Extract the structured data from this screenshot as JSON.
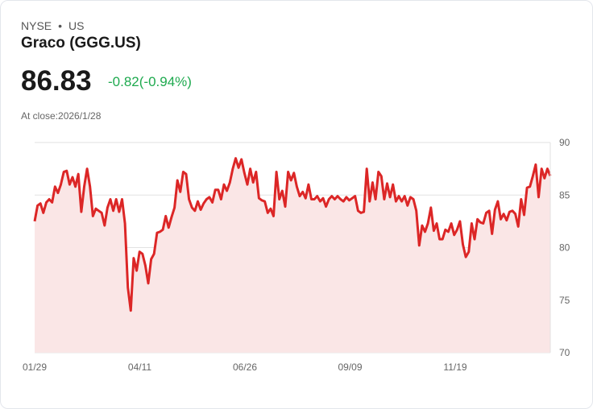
{
  "header": {
    "exchange": "NYSE",
    "separator": "•",
    "country": "US",
    "title": "Graco (GGG.US)",
    "price": "86.83",
    "change": "-0.82(-0.94%)",
    "close_label": "At close:2026/1/28"
  },
  "colors": {
    "line": "#dc2626",
    "fill": "#fae6e6",
    "change": "#1faa4f",
    "grid": "#e2e2e2"
  },
  "chart_data": {
    "type": "area",
    "title": "Graco (GGG.US)",
    "xlabel": "",
    "ylabel": "",
    "ylim": [
      70,
      90
    ],
    "yticks": [
      90,
      85,
      80,
      75,
      70
    ],
    "xticks": [
      "01/29",
      "04/11",
      "06/26",
      "09/09",
      "11/19"
    ],
    "grid": true,
    "y_axis_side": "right",
    "values": [
      82.5,
      84,
      84.2,
      83.3,
      84.3,
      84.6,
      84.3,
      85.8,
      85.2,
      86,
      87.2,
      87.3,
      86,
      86.7,
      85.8,
      87,
      83.4,
      85.8,
      87.5,
      85.8,
      83,
      83.7,
      83.5,
      83.3,
      82.1,
      83.8,
      84.6,
      83.5,
      84.6,
      83.4,
      84.6,
      82.3,
      76.2,
      74,
      79,
      77.8,
      79.6,
      79.4,
      78.3,
      76.6,
      78.9,
      79.4,
      81.4,
      81.5,
      81.7,
      83,
      81.9,
      82.9,
      83.8,
      86.4,
      85.3,
      87.2,
      87,
      84.6,
      83.8,
      83.5,
      84.4,
      83.6,
      84.2,
      84.6,
      84.8,
      84.3,
      85.5,
      85.5,
      84.6,
      86,
      85.4,
      86.2,
      87.5,
      88.5,
      87.6,
      88.4,
      87.1,
      86,
      87.5,
      86.2,
      87.2,
      84.7,
      84.5,
      84.4,
      83.3,
      83.7,
      83,
      87.2,
      84.6,
      85.4,
      83.9,
      87.2,
      86.4,
      87.1,
      85.8,
      84.9,
      85.3,
      84.7,
      86,
      84.6,
      84.6,
      84.9,
      84.4,
      84.7,
      83.9,
      84.6,
      84.9,
      84.6,
      84.9,
      84.6,
      84.4,
      84.8,
      84.5,
      84.7,
      84.9,
      83.5,
      83.3,
      83.4,
      87.5,
      84.4,
      86.2,
      84.6,
      87.2,
      86.8,
      84.6,
      86.1,
      84.8,
      86,
      84.4,
      84.9,
      84.4,
      84.9,
      84,
      84.8,
      84.6,
      83.5,
      80.2,
      82.1,
      81.5,
      82.3,
      83.8,
      81.6,
      82.3,
      80.8,
      80.8,
      81.7,
      81.5,
      82.3,
      81.2,
      81.7,
      82.5,
      80.3,
      79.1,
      79.6,
      82.3,
      80.8,
      82.7,
      82.4,
      82.3,
      83.3,
      83.5,
      81.3,
      83.6,
      84.4,
      82.7,
      83.2,
      82.6,
      83.4,
      83.5,
      83.2,
      82,
      84.6,
      83.1,
      85.7,
      85.8,
      86.8,
      87.9,
      84.8,
      87.5,
      86.6,
      87.5,
      86.83
    ]
  }
}
